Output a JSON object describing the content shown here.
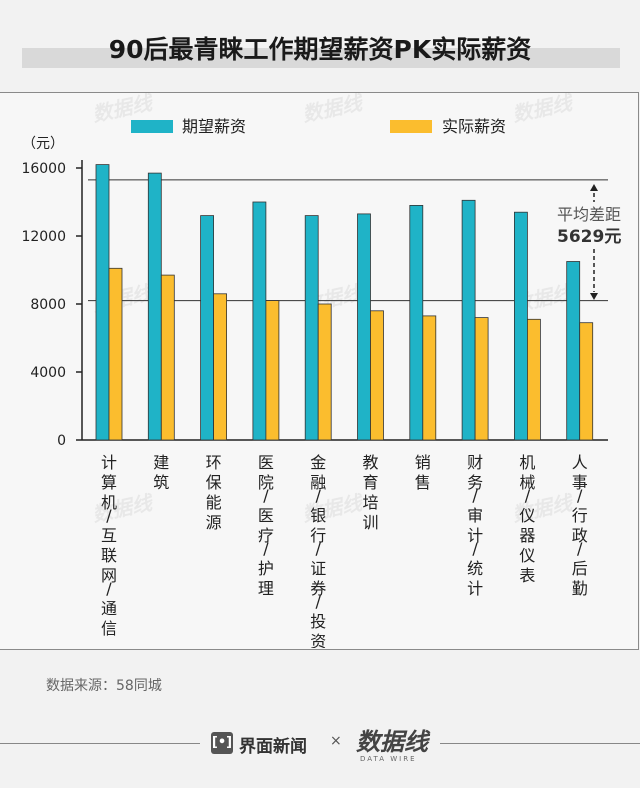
{
  "title": "90后最青睐工作期望薪资PK实际薪资",
  "chart_data": {
    "type": "bar",
    "unit": "（元）",
    "categories": [
      "计算机/互联网/通信",
      "建筑",
      "环保能源",
      "医院/医疗/护理",
      "金融/银行/证券/投资",
      "教育培训",
      "销售",
      "财务/审计/统计",
      "机械/仪器仪表",
      "人事/行政/后勤"
    ],
    "series": [
      {
        "name": "期望薪资",
        "color": "#1fb3c7",
        "values": [
          16200,
          15700,
          13200,
          14000,
          13200,
          13300,
          13800,
          14100,
          13400,
          10500
        ]
      },
      {
        "name": "实际薪资",
        "color": "#fbbd2e",
        "values": [
          10100,
          9700,
          8600,
          8200,
          8000,
          7600,
          7300,
          7200,
          7100,
          6900
        ]
      }
    ],
    "ylim": [
      0,
      16000
    ],
    "yticks": [
      0,
      4000,
      8000,
      12000,
      16000
    ],
    "reference_lines": [
      15300,
      8200
    ],
    "annotation": {
      "label": "平均差距",
      "value": "5629元"
    },
    "legend_position": "top"
  },
  "source": "数据来源：58同城",
  "footer": {
    "brand1_logo": "[•]",
    "brand1": "界面新闻",
    "separator": "×",
    "brand2": "数据线",
    "brand2_sub": "DATA WIRE"
  },
  "watermark_text": "数据线"
}
